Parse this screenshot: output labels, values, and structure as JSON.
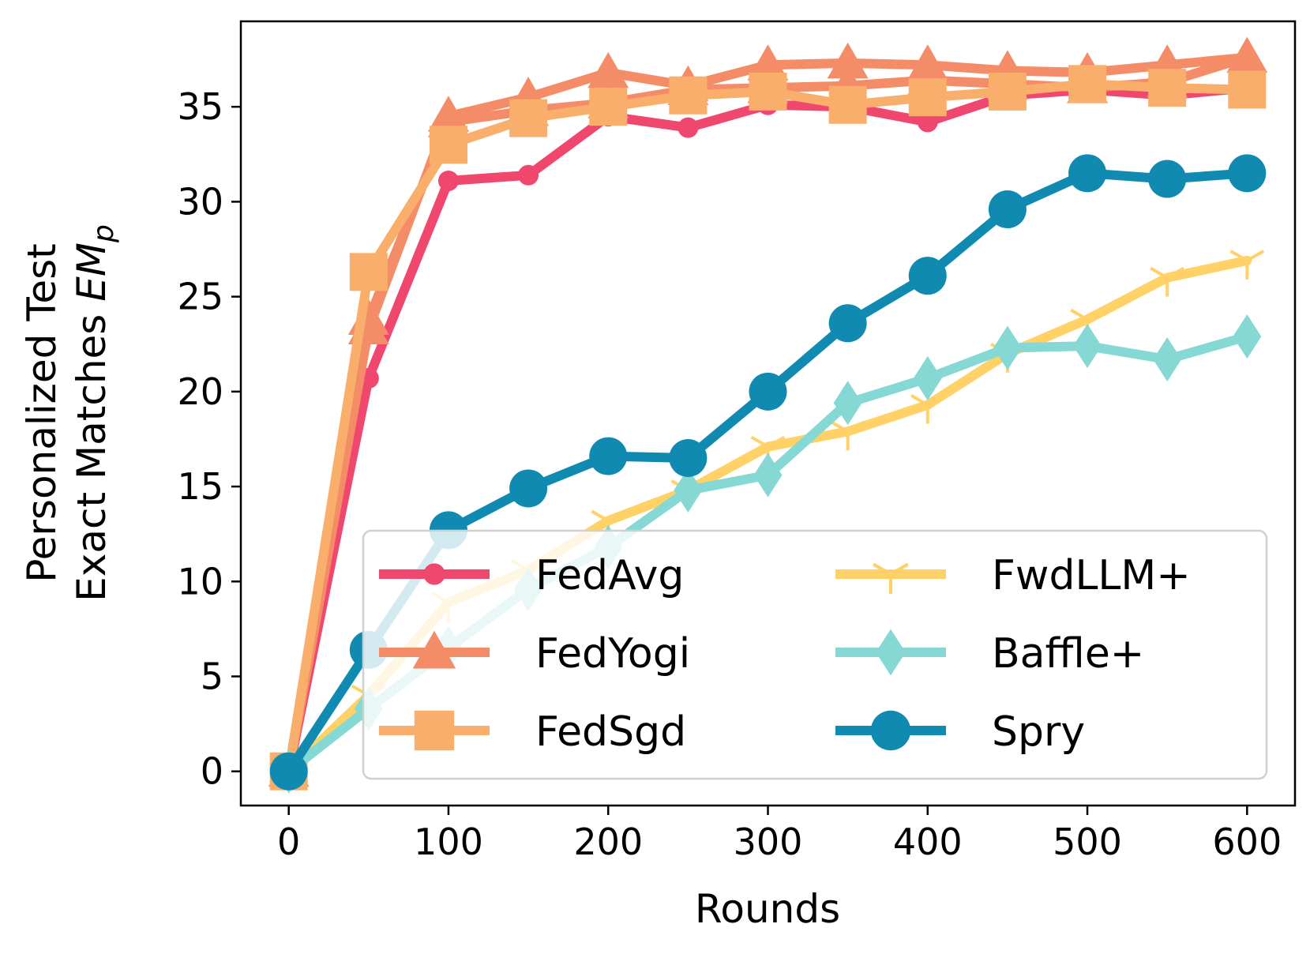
{
  "chart_data": {
    "type": "line",
    "title": "",
    "xlabel": "Rounds",
    "ylabel_line1": "Personalized Test",
    "ylabel_line2_prefix": "Exact Matches ",
    "ylabel_math": "EM",
    "ylabel_sub": "p",
    "xlim": [
      -30,
      630
    ],
    "ylim": [
      -1.8,
      39.5
    ],
    "xticks": [
      0,
      100,
      200,
      300,
      400,
      500,
      600
    ],
    "yticks": [
      0,
      5,
      10,
      15,
      20,
      25,
      30,
      35
    ],
    "legend_position": "lower-right",
    "series": [
      {
        "name": "FedAvg",
        "color": "#F0476F",
        "marker": "circle-small",
        "x": [
          0,
          50,
          100,
          150,
          200,
          250,
          300,
          350,
          400,
          450,
          500,
          550,
          600
        ],
        "y": [
          0,
          20.7,
          31.1,
          31.4,
          34.5,
          33.9,
          35.1,
          35.0,
          34.2,
          35.6,
          35.9,
          35.6,
          36.0
        ]
      },
      {
        "name": "FedYogi",
        "color": "#F48C67",
        "marker": "triangle",
        "x": [
          0,
          50,
          100,
          150,
          200,
          250,
          300,
          350,
          400,
          450,
          500,
          550,
          600,
          550,
          500,
          450,
          400,
          350,
          300,
          250,
          200,
          150,
          100,
          50
        ],
        "y": [
          0,
          23.3,
          34.5,
          35.5,
          36.8,
          36.1,
          37.2,
          37.3,
          37.2,
          36.9,
          36.8,
          37.2,
          37.6,
          36.3,
          36.0,
          36.2,
          36.4,
          36.1,
          36.0,
          35.9,
          35.2,
          34.8,
          34.2,
          23.8
        ]
      },
      {
        "name": "FedSgd",
        "color": "#F9AE6B",
        "marker": "square",
        "x": [
          0,
          50,
          100,
          150,
          200,
          250,
          300,
          350,
          400,
          450,
          500,
          550,
          600
        ],
        "y": [
          0,
          26.3,
          33.0,
          34.4,
          35.0,
          35.6,
          35.8,
          35.1,
          35.5,
          35.8,
          36.2,
          36.0,
          35.9
        ]
      },
      {
        "name": "FwdLLM+",
        "color": "#FFD166",
        "marker": "tri",
        "x": [
          0,
          50,
          100,
          150,
          200,
          250,
          300,
          350,
          400,
          450,
          500,
          550,
          600
        ],
        "y": [
          0,
          4.0,
          8.9,
          10.6,
          13.2,
          14.8,
          17.1,
          17.9,
          19.3,
          22.0,
          23.8,
          26.0,
          26.9
        ]
      },
      {
        "name": "Baffle+",
        "color": "#86D8D4",
        "marker": "diamond",
        "x": [
          0,
          50,
          100,
          150,
          200,
          250,
          300,
          350,
          400,
          450,
          500,
          550,
          600
        ],
        "y": [
          0,
          3.3,
          6.5,
          9.6,
          11.8,
          14.8,
          15.6,
          19.4,
          20.7,
          22.3,
          22.4,
          21.7,
          22.9
        ]
      },
      {
        "name": "Spry",
        "color": "#118AB2",
        "marker": "circle",
        "x": [
          0,
          50,
          100,
          150,
          200,
          250,
          300,
          350,
          400,
          450,
          500,
          550,
          600
        ],
        "y": [
          0,
          6.4,
          12.7,
          14.9,
          16.6,
          16.5,
          20.0,
          23.6,
          26.1,
          29.6,
          31.5,
          31.2,
          31.5
        ]
      }
    ]
  }
}
